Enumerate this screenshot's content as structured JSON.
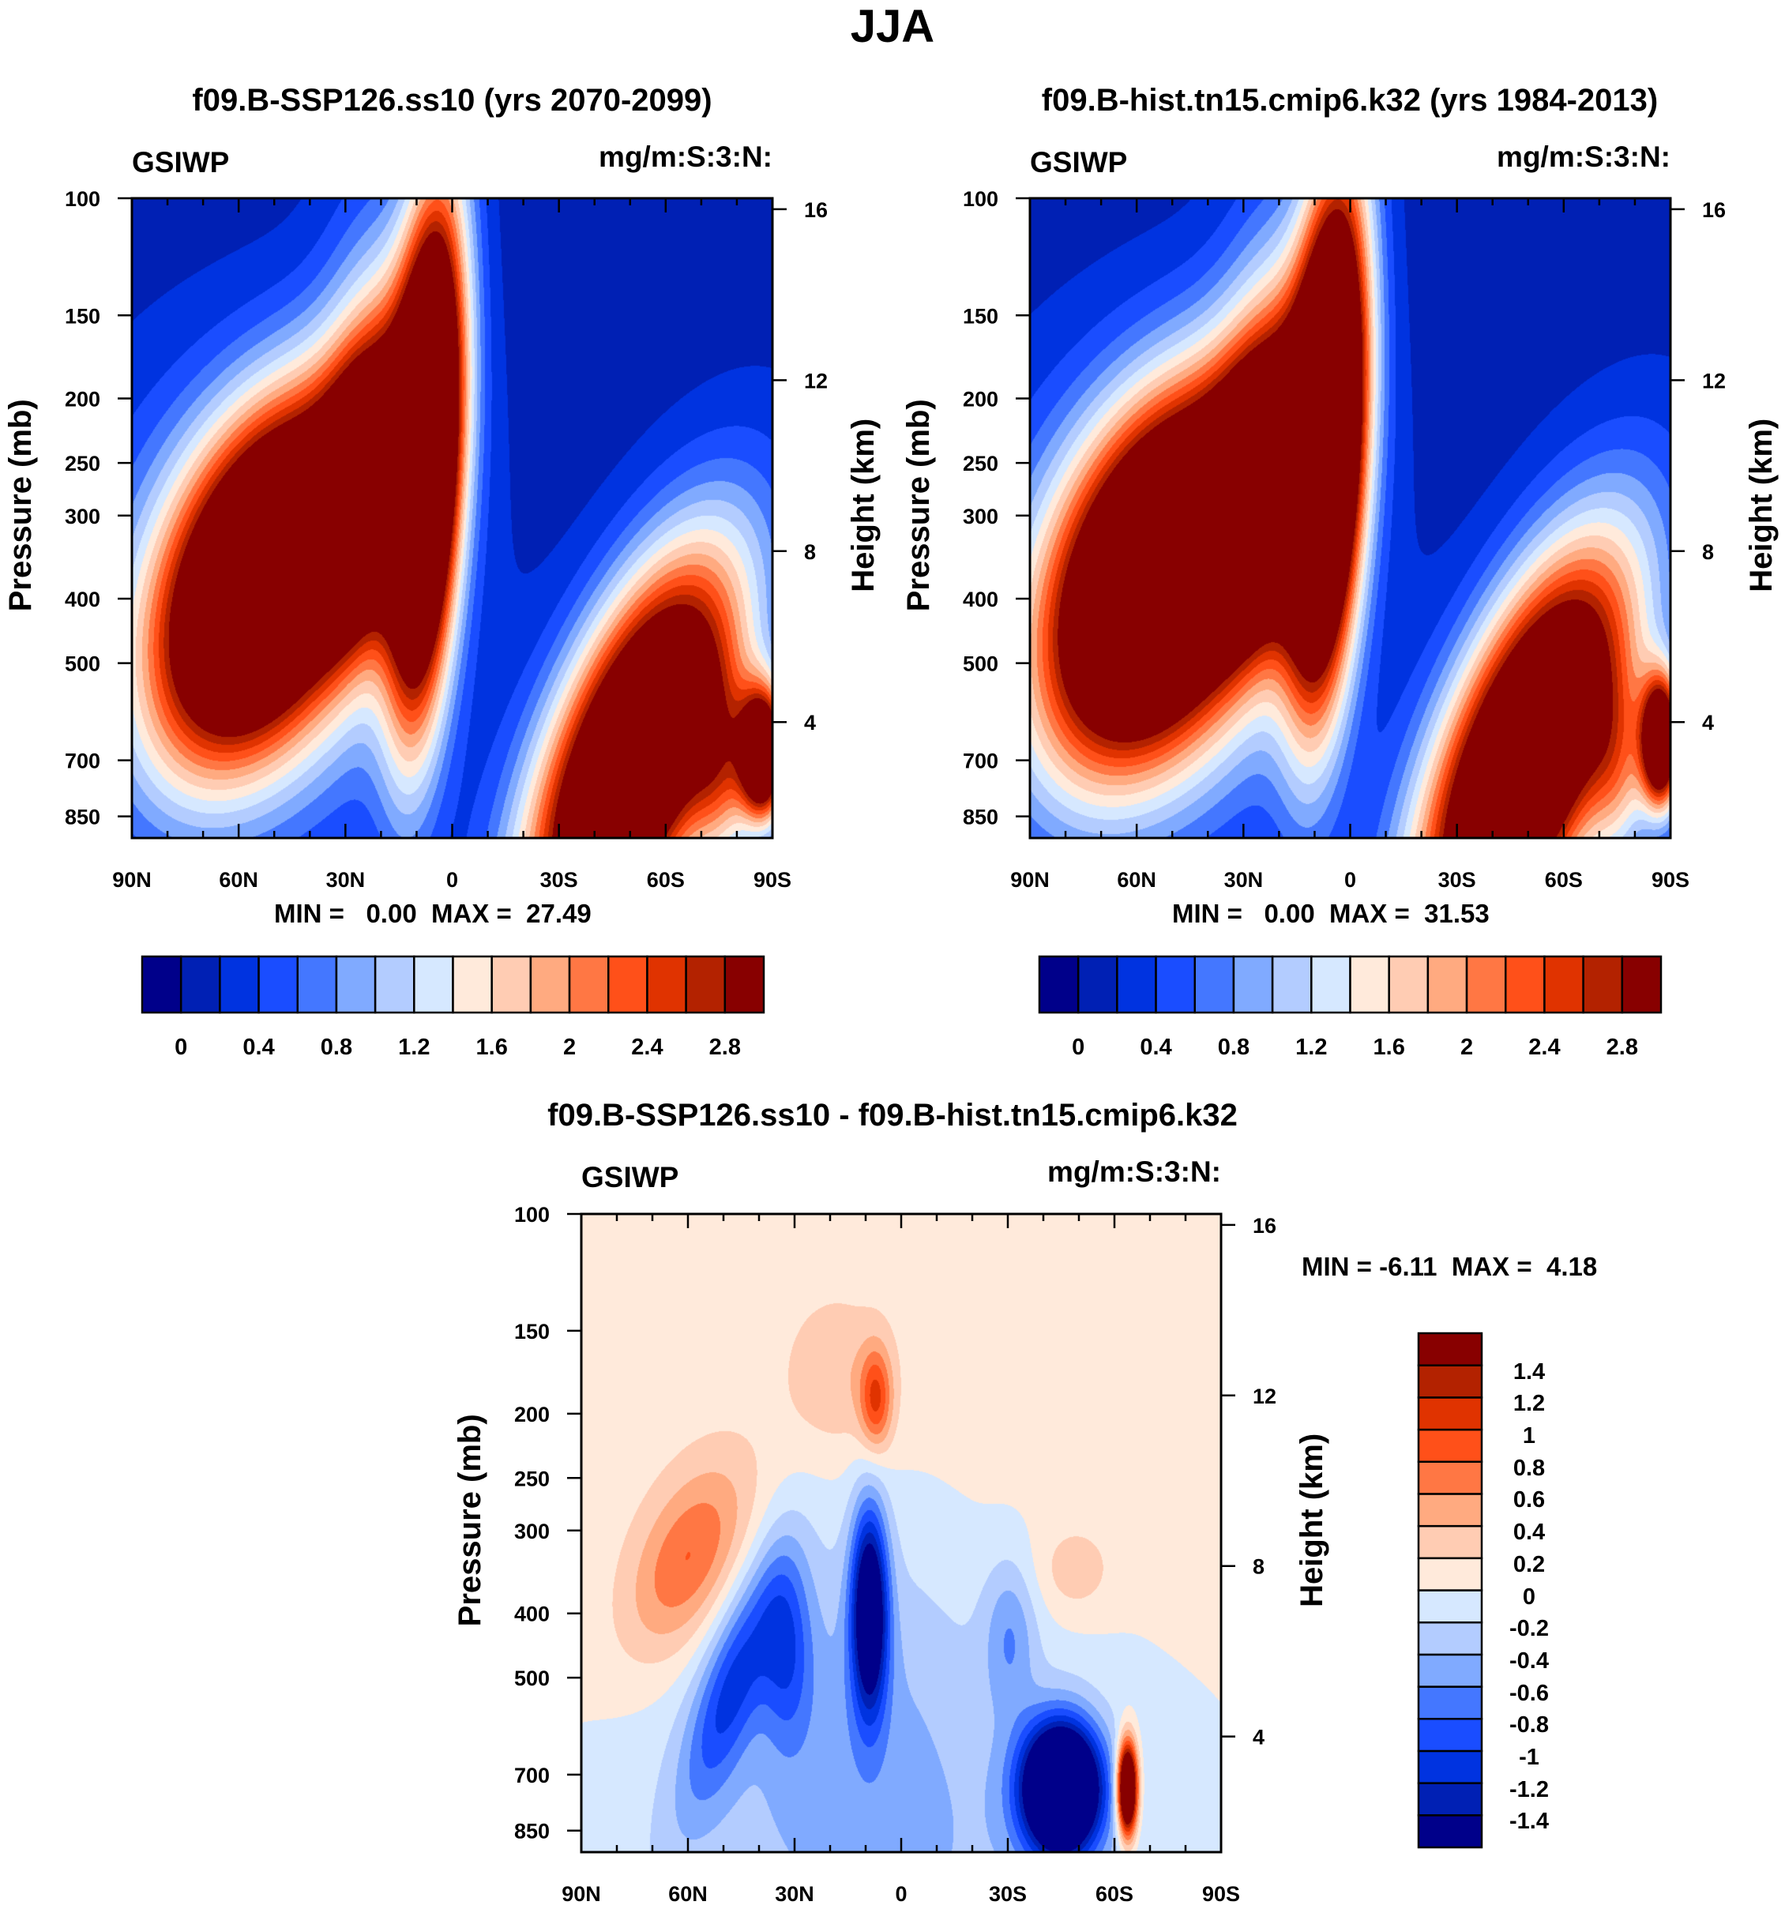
{
  "title": "JJA",
  "colors": [
    "#00008a",
    "#0020b4",
    "#0033e0",
    "#1a4dff",
    "#4477ff",
    "#80aaff",
    "#b3ccff",
    "#d6e8ff",
    "#ffeadb",
    "#ffccb3",
    "#ffaa80",
    "#ff7744",
    "#ff5019",
    "#e03300",
    "#b32200",
    "#880000"
  ],
  "chart_data": [
    {
      "type": "heatmap",
      "title": "f09.B-SSP126.ss10 (yrs 2070-2099)",
      "variable": "GSIWP",
      "units": "mg/m:S:3:N:",
      "ylabel": "Pressure (mb)",
      "ylabel_right": "Height (km)",
      "x_ticks": [
        "90N",
        "60N",
        "30N",
        "0",
        "30S",
        "60S",
        "90S"
      ],
      "y_ticks": [
        100,
        150,
        200,
        250,
        300,
        400,
        500,
        700,
        850
      ],
      "y_right_ticks": [
        16,
        12,
        8,
        4
      ],
      "ylim": [
        100,
        916
      ],
      "stats": {
        "min_label": "MIN =",
        "min": "0.00",
        "max_label": "MAX =",
        "max": "27.49"
      },
      "levels": [
        "0",
        "0.4",
        "0.8",
        "1.2",
        "1.6",
        "2",
        "2.4",
        "2.8"
      ]
    },
    {
      "type": "heatmap",
      "title": "f09.B-hist.tn15.cmip6.k32 (yrs 1984-2013)",
      "variable": "GSIWP",
      "units": "mg/m:S:3:N:",
      "ylabel": "Pressure (mb)",
      "ylabel_right": "Height (km)",
      "x_ticks": [
        "90N",
        "60N",
        "30N",
        "0",
        "30S",
        "60S",
        "90S"
      ],
      "y_ticks": [
        100,
        150,
        200,
        250,
        300,
        400,
        500,
        700,
        850
      ],
      "y_right_ticks": [
        16,
        12,
        8,
        4
      ],
      "ylim": [
        100,
        916
      ],
      "stats": {
        "min_label": "MIN =",
        "min": "0.00",
        "max_label": "MAX =",
        "max": "31.53"
      },
      "levels": [
        "0",
        "0.4",
        "0.8",
        "1.2",
        "1.6",
        "2",
        "2.4",
        "2.8"
      ]
    },
    {
      "type": "heatmap",
      "title": "f09.B-SSP126.ss10 - f09.B-hist.tn15.cmip6.k32",
      "variable": "GSIWP",
      "units": "mg/m:S:3:N:",
      "ylabel": "Pressure (mb)",
      "ylabel_right": "Height (km)",
      "x_ticks": [
        "90N",
        "60N",
        "30N",
        "0",
        "30S",
        "60S",
        "90S"
      ],
      "y_ticks": [
        100,
        150,
        200,
        250,
        300,
        400,
        500,
        700,
        850
      ],
      "y_right_ticks": [
        16,
        12,
        8,
        4
      ],
      "ylim": [
        100,
        916
      ],
      "stats": {
        "min_label": "MIN =",
        "min": "-6.11",
        "max_label": "MAX =",
        "max": "4.18"
      },
      "levels": [
        "1.4",
        "1.2",
        "1",
        "0.8",
        "0.6",
        "0.4",
        "0.2",
        "0",
        "-0.2",
        "-0.4",
        "-0.6",
        "-0.8",
        "-1",
        "-1.2",
        "-1.4"
      ]
    }
  ]
}
